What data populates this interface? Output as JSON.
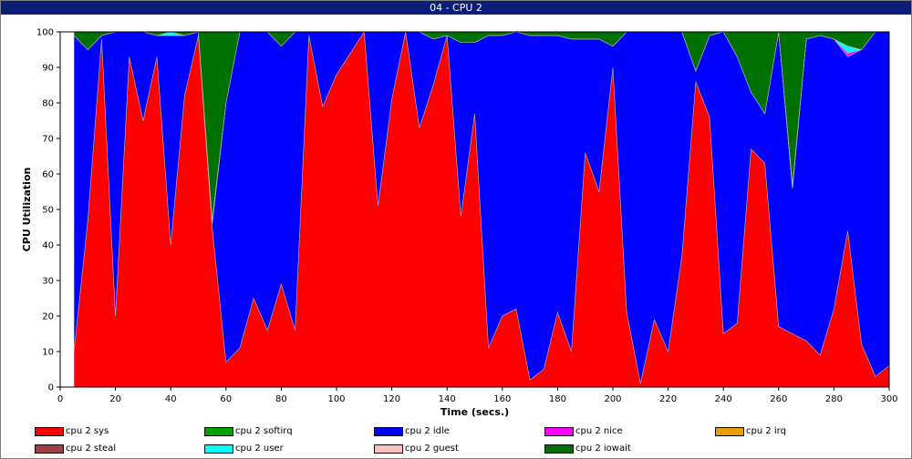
{
  "window": {
    "title": "04 - CPU 2"
  },
  "chart_data": {
    "type": "area",
    "stacked": true,
    "title": "04 - CPU 2",
    "xlabel": "Time (secs.)",
    "ylabel": "CPU Utilization",
    "xlim": [
      0,
      300
    ],
    "ylim": [
      0,
      100
    ],
    "x_ticks": [
      0,
      20,
      40,
      60,
      80,
      100,
      120,
      140,
      160,
      180,
      200,
      220,
      240,
      260,
      280,
      300
    ],
    "y_ticks": [
      0,
      10,
      20,
      30,
      40,
      50,
      60,
      70,
      80,
      90,
      100
    ],
    "grid": false,
    "legend_position": "bottom",
    "x": [
      5,
      10,
      15,
      20,
      25,
      30,
      35,
      40,
      45,
      50,
      55,
      60,
      65,
      70,
      75,
      80,
      85,
      90,
      95,
      100,
      105,
      110,
      115,
      120,
      125,
      130,
      135,
      140,
      145,
      150,
      155,
      160,
      165,
      170,
      175,
      180,
      185,
      190,
      195,
      200,
      205,
      210,
      215,
      220,
      225,
      230,
      235,
      240,
      245,
      250,
      255,
      260,
      265,
      270,
      275,
      280,
      285,
      290,
      295,
      300
    ],
    "series": [
      {
        "name": "cpu 2 sys",
        "color": "#ff0000",
        "values": [
          10,
          47,
          98,
          20,
          93,
          75,
          93,
          40,
          82,
          99,
          45,
          7,
          11,
          25,
          16,
          29,
          16,
          99,
          79,
          88,
          94,
          100,
          51,
          81,
          100,
          73,
          85,
          99,
          48,
          77,
          11,
          20,
          22,
          2,
          5,
          21,
          10,
          66,
          55,
          90,
          21,
          1,
          19,
          10,
          37,
          86,
          76,
          15,
          18,
          67,
          63,
          17,
          15,
          13,
          9,
          22,
          44,
          12,
          3,
          6
        ]
      },
      {
        "name": "cpu 2 softirq",
        "color": "#00a000",
        "values": [
          0,
          0,
          0,
          0,
          0,
          0,
          0,
          0,
          0,
          0,
          0,
          0,
          0,
          0,
          0,
          0,
          0,
          0,
          0,
          0,
          0,
          0,
          0,
          0,
          0,
          0,
          0,
          0,
          0,
          0,
          0,
          0,
          0,
          0,
          0,
          0,
          0,
          0,
          0,
          0,
          0,
          0,
          0,
          0,
          0,
          0,
          0,
          0,
          0,
          0,
          0,
          0,
          0,
          0,
          0,
          0,
          0,
          0,
          0,
          0
        ]
      },
      {
        "name": "cpu 2 idle",
        "color": "#0000ff",
        "values": [
          89,
          48,
          1,
          80,
          7,
          25,
          6,
          59,
          17,
          1,
          1,
          73,
          89,
          75,
          84,
          67,
          84,
          1,
          21,
          12,
          6,
          0,
          49,
          19,
          0,
          27,
          13,
          0,
          49,
          20,
          88,
          79,
          78,
          97,
          94,
          78,
          88,
          32,
          43,
          6,
          79,
          99,
          81,
          90,
          63,
          3,
          23,
          85,
          75,
          16,
          14,
          83,
          41,
          85,
          90,
          76,
          49,
          83,
          97,
          94
        ]
      },
      {
        "name": "cpu 2 nice",
        "color": "#ff00ff",
        "values": [
          0,
          0,
          0,
          0,
          0,
          0,
          0,
          0,
          0,
          0,
          0,
          0,
          0,
          0,
          0,
          0,
          0,
          0,
          0,
          0,
          0,
          0,
          0,
          0,
          0,
          0,
          0,
          0,
          0,
          0,
          0,
          0,
          0,
          0,
          0,
          0,
          0,
          0,
          0,
          0,
          0,
          0,
          0,
          0,
          0,
          0,
          0,
          0,
          0,
          0,
          0,
          0,
          0,
          0,
          0,
          0,
          1,
          0,
          0,
          0
        ]
      },
      {
        "name": "cpu 2 irq",
        "color": "#e8a000",
        "values": [
          0,
          0,
          0,
          0,
          0,
          0,
          0,
          0,
          0,
          0,
          0,
          0,
          0,
          0,
          0,
          0,
          0,
          0,
          0,
          0,
          0,
          0,
          0,
          0,
          0,
          0,
          0,
          0,
          0,
          0,
          0,
          0,
          0,
          0,
          0,
          0,
          0,
          0,
          0,
          0,
          0,
          0,
          0,
          0,
          0,
          0,
          0,
          0,
          0,
          0,
          0,
          0,
          0,
          0,
          0,
          0,
          0,
          0,
          0,
          0
        ]
      },
      {
        "name": "cpu 2 steal",
        "color": "#a04040",
        "values": [
          0,
          0,
          0,
          0,
          0,
          0,
          0,
          0,
          0,
          0,
          0,
          0,
          0,
          0,
          0,
          0,
          0,
          0,
          0,
          0,
          0,
          0,
          0,
          0,
          0,
          0,
          0,
          0,
          0,
          0,
          0,
          0,
          0,
          0,
          0,
          0,
          0,
          0,
          0,
          0,
          0,
          0,
          0,
          0,
          0,
          0,
          0,
          0,
          0,
          0,
          0,
          0,
          0,
          0,
          0,
          0,
          0,
          0,
          0,
          0
        ]
      },
      {
        "name": "cpu 2 user",
        "color": "#00ffff",
        "values": [
          0,
          0,
          0,
          0,
          0,
          0,
          0,
          1,
          0,
          0,
          0,
          0,
          0,
          0,
          0,
          0,
          0,
          0,
          0,
          0,
          0,
          0,
          0,
          0,
          0,
          0,
          0,
          0,
          0,
          0,
          0,
          0,
          0,
          0,
          0,
          0,
          0,
          0,
          0,
          0,
          0,
          0,
          0,
          0,
          0,
          0,
          0,
          0,
          0,
          0,
          0,
          0,
          0,
          0,
          0,
          0,
          2,
          0,
          0,
          0
        ]
      },
      {
        "name": "cpu 2 guest",
        "color": "#ffc0c0",
        "values": [
          0,
          0,
          0,
          0,
          0,
          0,
          0,
          0,
          0,
          0,
          1,
          0,
          0,
          0,
          0,
          0,
          0,
          0,
          0,
          0,
          0,
          0,
          0,
          0,
          0,
          0,
          0,
          0,
          0,
          0,
          0,
          0,
          0,
          0,
          0,
          0,
          0,
          0,
          0,
          0,
          0,
          0,
          0,
          0,
          0,
          0,
          0,
          0,
          0,
          0,
          0,
          0,
          1,
          0,
          0,
          0,
          0,
          0,
          0,
          0
        ]
      },
      {
        "name": "cpu 2 iowait",
        "color": "#007000",
        "values": [
          1,
          5,
          1,
          0,
          0,
          0,
          1,
          0,
          1,
          0,
          53,
          20,
          0,
          0,
          0,
          4,
          0,
          0,
          0,
          0,
          0,
          0,
          0,
          0,
          0,
          0,
          2,
          1,
          3,
          3,
          1,
          1,
          0,
          1,
          1,
          1,
          2,
          2,
          2,
          4,
          0,
          0,
          0,
          0,
          0,
          11,
          1,
          0,
          7,
          17,
          23,
          0,
          43,
          2,
          1,
          2,
          4,
          5,
          0,
          0
        ]
      }
    ]
  }
}
